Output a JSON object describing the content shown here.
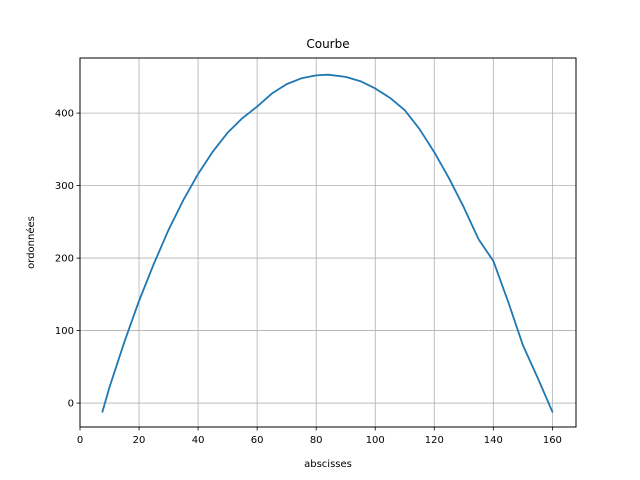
{
  "chart_data": {
    "type": "line",
    "title": "Courbe",
    "xlabel": "abscisses",
    "ylabel": "ordonnées",
    "xlim": [
      0,
      168
    ],
    "ylim": [
      -33,
      476
    ],
    "xticks": [
      0,
      20,
      40,
      60,
      80,
      100,
      120,
      140,
      160
    ],
    "yticks": [
      0,
      100,
      200,
      300,
      400
    ],
    "grid": true,
    "series": [
      {
        "color": "#1f77b4",
        "x": [
          7.6,
          10,
          15,
          20,
          25,
          30,
          35,
          40,
          45,
          50,
          55,
          60,
          65,
          70,
          75,
          80,
          84,
          90,
          95,
          100,
          105,
          110,
          115,
          120,
          125,
          130,
          135,
          140,
          145,
          150,
          155,
          160
        ],
        "y": [
          -12,
          22,
          84,
          141,
          192,
          239,
          280,
          316,
          347,
          373,
          393,
          409,
          427,
          440,
          448,
          452,
          453,
          450,
          444,
          434,
          421,
          404,
          378,
          346,
          310,
          270,
          226,
          196,
          140,
          80,
          35,
          -12
        ]
      }
    ]
  }
}
